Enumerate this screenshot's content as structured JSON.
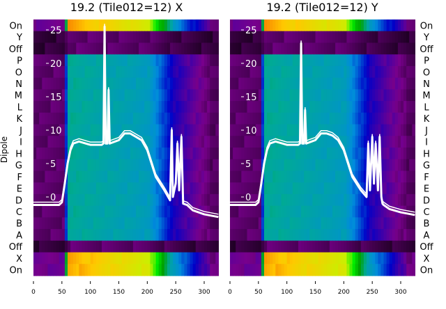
{
  "chart_data": [
    {
      "type": "heatmap",
      "title": "19.2 (Tile012=12) X",
      "ylabel": "Dipole",
      "row_labels": [
        "On",
        "Y",
        "Off",
        "P",
        "O",
        "N",
        "M",
        "L",
        "K",
        "J",
        "I",
        "H",
        "G",
        "F",
        "E",
        "D",
        "C",
        "B",
        "A",
        "Off",
        "X",
        "On"
      ],
      "x_ticks": [
        0,
        50,
        100,
        150,
        200,
        250,
        300
      ],
      "xlim": [
        0,
        325
      ],
      "overlay_ticks": [
        0,
        5,
        10,
        15,
        20,
        25
      ],
      "overlay_ylim": [
        -3,
        26.5
      ],
      "overlay_line": {
        "x": [
          0,
          45,
          50,
          55,
          60,
          65,
          70,
          80,
          100,
          120,
          123,
          125,
          127,
          130,
          132,
          134,
          150,
          160,
          170,
          180,
          190,
          200,
          215,
          230,
          240,
          243,
          245,
          250,
          253,
          256,
          260,
          263,
          270,
          280,
          300,
          325
        ],
        "y": [
          -1.2,
          -1.2,
          -0.8,
          2,
          5,
          7,
          8,
          8.3,
          7.8,
          7.8,
          8,
          25.5,
          8,
          8,
          16,
          8,
          8.5,
          9.5,
          9.5,
          9,
          8.5,
          7,
          3,
          1,
          -0.5,
          10,
          0,
          2,
          8,
          1,
          9,
          -1,
          -1.2,
          -2,
          -2.6,
          -3
        ]
      }
    },
    {
      "type": "heatmap",
      "title": "19.2 (Tile012=12) Y",
      "row_labels": [
        "On",
        "Y",
        "Off",
        "P",
        "O",
        "N",
        "M",
        "L",
        "K",
        "J",
        "I",
        "H",
        "G",
        "F",
        "E",
        "D",
        "C",
        "B",
        "A",
        "Off",
        "X",
        "On"
      ],
      "x_ticks": [
        0,
        50,
        100,
        150,
        200,
        250,
        300
      ],
      "xlim": [
        0,
        325
      ],
      "overlay_ticks": [
        0,
        5,
        10,
        15,
        20,
        25
      ],
      "overlay_ylim": [
        -3,
        26.5
      ],
      "overlay_line": {
        "x": [
          0,
          45,
          50,
          55,
          60,
          65,
          70,
          80,
          100,
          120,
          123,
          125,
          127,
          130,
          132,
          134,
          150,
          160,
          170,
          180,
          190,
          200,
          215,
          230,
          240,
          243,
          246,
          250,
          253,
          256,
          260,
          263,
          266,
          268,
          270,
          280,
          300,
          325
        ],
        "y": [
          -1.2,
          -1.2,
          -0.8,
          2,
          5,
          7,
          8,
          8.3,
          7.8,
          7.8,
          8,
          23,
          8,
          8,
          13,
          8,
          8.5,
          9.5,
          9.5,
          9.2,
          8.5,
          7,
          3,
          1,
          0,
          8,
          1,
          9,
          2,
          8,
          1,
          9,
          0,
          -1,
          -1.2,
          -1.8,
          -2.3,
          -2.7
        ]
      }
    }
  ]
}
